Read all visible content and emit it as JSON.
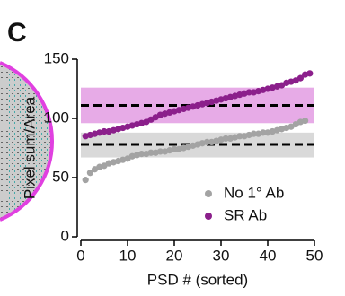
{
  "chart_data": {
    "type": "scatter",
    "panel_label": "C",
    "xlabel": "PSD # (sorted)",
    "ylabel": "Pixel sum/Area",
    "xlim": [
      0,
      50
    ],
    "xticks": [
      0,
      10,
      20,
      30,
      40,
      50
    ],
    "ylim": [
      0,
      150
    ],
    "yticks": [
      0,
      50,
      100,
      150
    ],
    "series": [
      {
        "name": "No 1° Ab",
        "color": "#a3a3a3",
        "band_color": "#d9d9d9",
        "band": [
          67,
          88
        ],
        "mean": 78,
        "x": [
          1,
          2,
          3,
          4,
          5,
          6,
          7,
          8,
          9,
          10,
          11,
          12,
          13,
          14,
          15,
          16,
          17,
          18,
          19,
          20,
          21,
          22,
          23,
          24,
          25,
          26,
          27,
          28,
          29,
          30,
          31,
          32,
          33,
          34,
          35,
          36,
          37,
          38,
          39,
          40,
          41,
          42,
          43,
          44,
          45,
          46,
          47,
          48
        ],
        "values": [
          48,
          54,
          57,
          59,
          60,
          62,
          63,
          64,
          65,
          66,
          68,
          69,
          70,
          70,
          71,
          71,
          72,
          72,
          73,
          74,
          74,
          75,
          76,
          77,
          78,
          79,
          80,
          80,
          81,
          82,
          83,
          83,
          84,
          85,
          85,
          86,
          87,
          87,
          88,
          88,
          89,
          90,
          91,
          92,
          93,
          95,
          97,
          98
        ]
      },
      {
        "name": "SR Ab",
        "color": "#8b1f8b",
        "band_color": "#e7abe7",
        "band": [
          96,
          126
        ],
        "mean": 111,
        "x": [
          1,
          2,
          3,
          4,
          5,
          6,
          7,
          8,
          9,
          10,
          11,
          12,
          13,
          14,
          15,
          16,
          17,
          18,
          19,
          20,
          21,
          22,
          23,
          24,
          25,
          26,
          27,
          28,
          29,
          30,
          31,
          32,
          33,
          34,
          35,
          36,
          37,
          38,
          39,
          40,
          41,
          42,
          43,
          44,
          45,
          46,
          47,
          48,
          49
        ],
        "values": [
          85,
          86,
          87,
          88,
          89,
          89,
          90,
          91,
          92,
          93,
          94,
          95,
          96,
          97,
          99,
          101,
          103,
          104,
          105,
          106,
          107,
          108,
          109,
          110,
          111,
          112,
          113,
          114,
          115,
          116,
          117,
          118,
          119,
          120,
          121,
          122,
          122,
          123,
          124,
          125,
          126,
          127,
          128,
          130,
          131,
          132,
          134,
          137,
          138
        ]
      }
    ]
  }
}
